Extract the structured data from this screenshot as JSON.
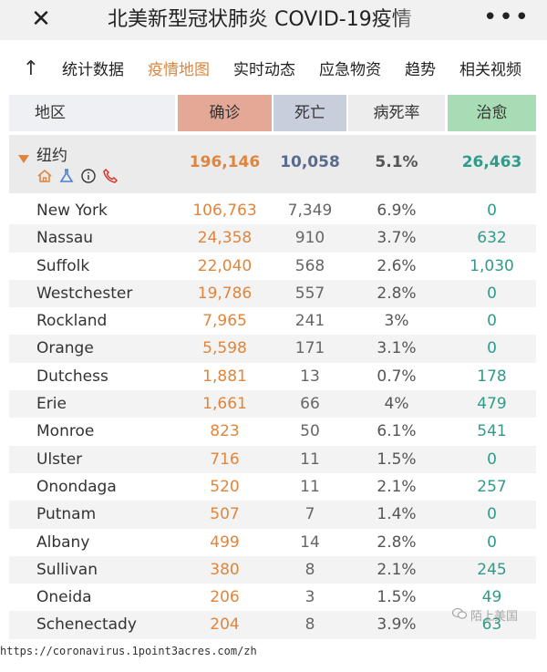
{
  "window": {
    "title": "北美新型冠状肺炎 COVID-19疫情"
  },
  "nav": {
    "items": [
      {
        "label": "统计数据",
        "active": false
      },
      {
        "label": "疫情地图",
        "active": true
      },
      {
        "label": "实时动态",
        "active": false
      },
      {
        "label": "应急物资",
        "active": false
      },
      {
        "label": "趋势",
        "active": false
      },
      {
        "label": "相关视频",
        "active": false
      }
    ]
  },
  "table": {
    "headers": {
      "region": "地区",
      "confirmed": "确诊",
      "deaths": "死亡",
      "rate": "病死率",
      "recovered": "治愈"
    },
    "state": {
      "name": "纽约",
      "confirmed": "196,146",
      "deaths": "10,058",
      "rate": "5.1%",
      "recovered": "26,463"
    },
    "rows": [
      {
        "region": "New York",
        "confirmed": "106,763",
        "deaths": "7,349",
        "rate": "6.9%",
        "recovered": "0"
      },
      {
        "region": "Nassau",
        "confirmed": "24,358",
        "deaths": "910",
        "rate": "3.7%",
        "recovered": "632"
      },
      {
        "region": "Suffolk",
        "confirmed": "22,040",
        "deaths": "568",
        "rate": "2.6%",
        "recovered": "1,030"
      },
      {
        "region": "Westchester",
        "confirmed": "19,786",
        "deaths": "557",
        "rate": "2.8%",
        "recovered": "0"
      },
      {
        "region": "Rockland",
        "confirmed": "7,965",
        "deaths": "241",
        "rate": "3%",
        "recovered": "0"
      },
      {
        "region": "Orange",
        "confirmed": "5,598",
        "deaths": "171",
        "rate": "3.1%",
        "recovered": "0"
      },
      {
        "region": "Dutchess",
        "confirmed": "1,881",
        "deaths": "13",
        "rate": "0.7%",
        "recovered": "178"
      },
      {
        "region": "Erie",
        "confirmed": "1,661",
        "deaths": "66",
        "rate": "4%",
        "recovered": "479"
      },
      {
        "region": "Monroe",
        "confirmed": "823",
        "deaths": "50",
        "rate": "6.1%",
        "recovered": "541"
      },
      {
        "region": "Ulster",
        "confirmed": "716",
        "deaths": "11",
        "rate": "1.5%",
        "recovered": "0"
      },
      {
        "region": "Onondaga",
        "confirmed": "520",
        "deaths": "11",
        "rate": "2.1%",
        "recovered": "257"
      },
      {
        "region": "Putnam",
        "confirmed": "507",
        "deaths": "7",
        "rate": "1.4%",
        "recovered": "0"
      },
      {
        "region": "Albany",
        "confirmed": "499",
        "deaths": "14",
        "rate": "2.8%",
        "recovered": "0"
      },
      {
        "region": "Sullivan",
        "confirmed": "380",
        "deaths": "8",
        "rate": "2.1%",
        "recovered": "245"
      },
      {
        "region": "Oneida",
        "confirmed": "206",
        "deaths": "3",
        "rate": "1.5%",
        "recovered": "49"
      },
      {
        "region": "Schenectady",
        "confirmed": "204",
        "deaths": "8",
        "rate": "3.9%",
        "recovered": "63"
      }
    ]
  },
  "icons": {
    "close": "close-icon",
    "more": "more-icon",
    "back": "up-arrow-icon",
    "state": [
      "home-icon",
      "flask-icon",
      "info-icon",
      "phone-icon"
    ]
  },
  "colors": {
    "accent": "#e0853b",
    "recovered": "#2f9b88",
    "confirmed_header": "#e3a896",
    "deaths_header": "#c9cedd",
    "recovered_header": "#a8dcb4"
  },
  "footer": {
    "url": "https://coronavirus.1point3acres.com/zh"
  },
  "watermark": {
    "text": "陌上美国"
  }
}
